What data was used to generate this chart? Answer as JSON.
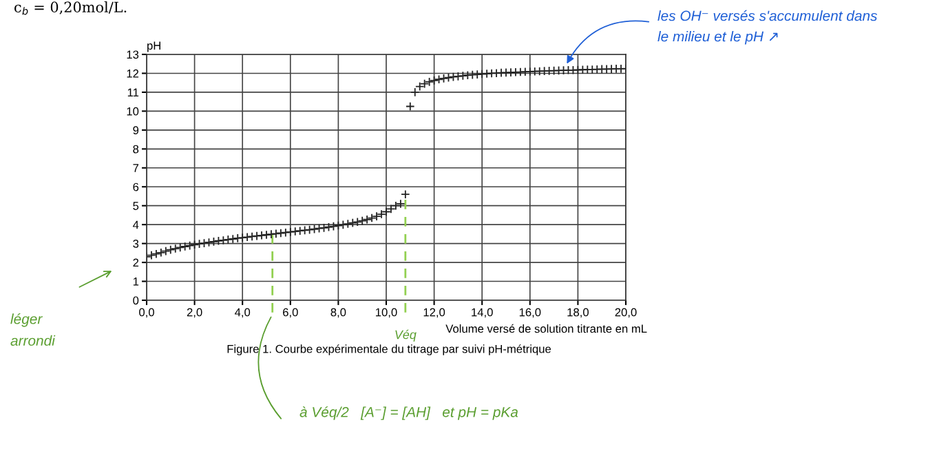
{
  "chart_data": {
    "type": "scatter",
    "x": [
      0,
      0.2,
      0.4,
      0.6,
      0.8,
      1.0,
      1.2,
      1.4,
      1.6,
      1.8,
      2.0,
      2.2,
      2.4,
      2.6,
      2.8,
      3.0,
      3.2,
      3.4,
      3.6,
      3.8,
      4.0,
      4.2,
      4.4,
      4.6,
      4.8,
      5.0,
      5.2,
      5.4,
      5.6,
      5.8,
      6.0,
      6.2,
      6.4,
      6.6,
      6.8,
      7.0,
      7.2,
      7.4,
      7.6,
      7.8,
      8.0,
      8.2,
      8.4,
      8.6,
      8.8,
      9.0,
      9.2,
      9.4,
      9.6,
      9.8,
      10.0,
      10.2,
      10.4,
      10.6,
      10.8,
      11.0,
      11.2,
      11.4,
      11.6,
      11.8,
      12.0,
      12.2,
      12.4,
      12.6,
      12.8,
      13.0,
      13.2,
      13.4,
      13.6,
      13.8,
      14.0,
      14.2,
      14.4,
      14.6,
      14.8,
      15.0,
      15.2,
      15.4,
      15.6,
      15.8,
      16.0,
      16.2,
      16.4,
      16.6,
      16.8,
      17.0,
      17.2,
      17.4,
      17.6,
      17.8,
      18.0,
      18.2,
      18.4,
      18.6,
      18.8,
      19.0,
      19.2,
      19.4,
      19.6,
      19.8,
      20.0
    ],
    "series": [
      {
        "color": "#222222",
        "values": [
          2.3,
          2.38,
          2.45,
          2.52,
          2.6,
          2.67,
          2.73,
          2.79,
          2.84,
          2.89,
          2.94,
          2.98,
          3.02,
          3.06,
          3.1,
          3.14,
          3.17,
          3.21,
          3.24,
          3.28,
          3.31,
          3.34,
          3.37,
          3.4,
          3.43,
          3.46,
          3.49,
          3.52,
          3.55,
          3.58,
          3.61,
          3.64,
          3.67,
          3.7,
          3.73,
          3.76,
          3.8,
          3.83,
          3.87,
          3.91,
          3.95,
          3.99,
          4.04,
          4.09,
          4.14,
          4.2,
          4.27,
          4.35,
          4.44,
          4.55,
          4.68,
          4.83,
          5.0,
          5.1,
          5.6,
          10.25,
          11.0,
          11.3,
          11.45,
          11.55,
          11.62,
          11.68,
          11.73,
          11.77,
          11.81,
          11.84,
          11.87,
          11.9,
          11.92,
          11.94,
          11.96,
          11.98,
          12.0,
          12.01,
          12.03,
          12.04,
          12.05,
          12.06,
          12.07,
          12.08,
          12.09,
          12.1,
          12.11,
          12.12,
          12.13,
          12.14,
          12.15,
          12.16,
          12.17,
          12.17,
          12.18,
          12.19,
          12.2,
          12.2,
          12.21,
          12.22,
          12.22,
          12.23,
          12.24,
          12.24,
          12.25
        ]
      }
    ],
    "marker": "cross",
    "xlabel": "Volume versé de solution titrante en mL",
    "ylabel": "pH",
    "xlim": [
      0,
      20
    ],
    "ylim": [
      0,
      13
    ],
    "xticks": [
      {
        "value": 0,
        "label": "0,0"
      },
      {
        "value": 2,
        "label": "2,0"
      },
      {
        "value": 4,
        "label": "4,0"
      },
      {
        "value": 6,
        "label": "6,0"
      },
      {
        "value": 8,
        "label": "8,0"
      },
      {
        "value": 10,
        "label": "10,0"
      },
      {
        "value": 12,
        "label": "12,0"
      },
      {
        "value": 14,
        "label": "14,0"
      },
      {
        "value": 16,
        "label": "16,0"
      },
      {
        "value": 18,
        "label": "18,0"
      },
      {
        "value": 20,
        "label": "20,0"
      }
    ],
    "yticks": [
      0,
      1,
      2,
      3,
      4,
      5,
      6,
      7,
      8,
      9,
      10,
      11,
      12,
      13
    ],
    "grid": true,
    "ref_lines": [
      {
        "axis": "x",
        "value": 5.25,
        "color": "#92d050",
        "line_style": "dashed"
      },
      {
        "axis": "x",
        "value": 10.8,
        "label": "Véq",
        "color": "#92d050",
        "line_style": "dashed"
      }
    ],
    "annotations": [
      "c$_{b}$ = 0,20mol/L.",
      "les OH⁻ versés s'accumulent dans\nle milieu et le pH ↗",
      "léger\narrondi",
      "à Véq/2   [A⁻] = [AH]   et pH = pKa",
      "Figure 1. Courbe expérimentale du titrage par suivi pH-métrique"
    ]
  }
}
